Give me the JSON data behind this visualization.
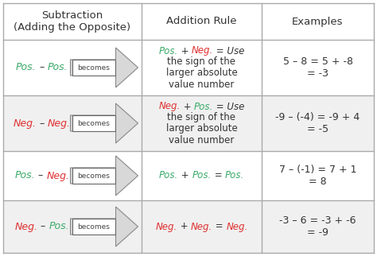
{
  "bg_color": "#ffffff",
  "grid_color": "#aaaaaa",
  "green": "#3aaa6a",
  "red": "#e03030",
  "black": "#333333",
  "col_headers": [
    "Subtraction\n(Adding the Opposite)",
    "Addition Rule",
    "Examples"
  ],
  "rows": [
    {
      "sub_parts": [
        {
          "text": "Pos.",
          "color": "#3aaa6a"
        },
        {
          "text": " – ",
          "color": "#333333"
        },
        {
          "text": "Pos.",
          "color": "#3aaa6a"
        }
      ],
      "rule_line1": [
        {
          "text": "Pos.",
          "color": "#3aaa6a"
        },
        {
          "text": " + ",
          "color": "#333333"
        },
        {
          "text": "Neg.",
          "color": "#e03030"
        },
        {
          "text": " = Use",
          "color": "#333333"
        }
      ],
      "rule_rest": [
        "the sign of the",
        "larger absolute",
        "value number"
      ],
      "example": "5 – 8 = 5 + -8\n= -3",
      "bg": "#ffffff",
      "tall": true
    },
    {
      "sub_parts": [
        {
          "text": "Neg.",
          "color": "#e03030"
        },
        {
          "text": " – ",
          "color": "#333333"
        },
        {
          "text": "Neg.",
          "color": "#e03030"
        }
      ],
      "rule_line1": [
        {
          "text": "Neg.",
          "color": "#e03030"
        },
        {
          "text": " + ",
          "color": "#333333"
        },
        {
          "text": "Pos.",
          "color": "#3aaa6a"
        },
        {
          "text": " = Use",
          "color": "#333333"
        }
      ],
      "rule_rest": [
        "the sign of the",
        "larger absolute",
        "value number"
      ],
      "example": "-9 – (-4) = -9 + 4\n= -5",
      "bg": "#f0f0f0",
      "tall": true
    },
    {
      "sub_parts": [
        {
          "text": "Pos.",
          "color": "#3aaa6a"
        },
        {
          "text": " – ",
          "color": "#333333"
        },
        {
          "text": "Neg.",
          "color": "#e03030"
        }
      ],
      "rule_single": [
        {
          "text": "Pos.",
          "color": "#3aaa6a"
        },
        {
          "text": " + ",
          "color": "#333333"
        },
        {
          "text": "Pos.",
          "color": "#3aaa6a"
        },
        {
          "text": " = ",
          "color": "#333333"
        },
        {
          "text": "Pos.",
          "color": "#3aaa6a"
        }
      ],
      "example": "7 – (-1) = 7 + 1\n= 8",
      "bg": "#ffffff",
      "tall": false
    },
    {
      "sub_parts": [
        {
          "text": "Neg.",
          "color": "#e03030"
        },
        {
          "text": " – ",
          "color": "#333333"
        },
        {
          "text": "Pos.",
          "color": "#3aaa6a"
        }
      ],
      "rule_single": [
        {
          "text": "Neg.",
          "color": "#e03030"
        },
        {
          "text": " + ",
          "color": "#333333"
        },
        {
          "text": "Neg.",
          "color": "#e03030"
        },
        {
          "text": " = ",
          "color": "#333333"
        },
        {
          "text": "Neg.",
          "color": "#e03030"
        }
      ],
      "example": "-3 – 6 = -3 + -6\n= -9",
      "bg": "#f0f0f0",
      "tall": false
    }
  ]
}
